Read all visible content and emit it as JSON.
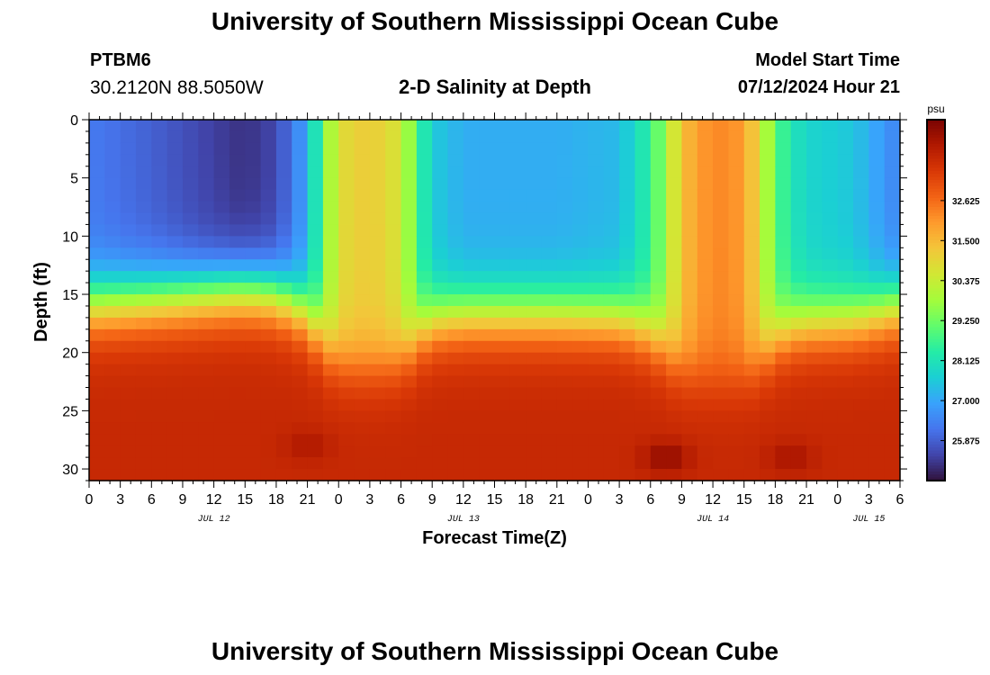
{
  "header": {
    "title": "University of Southern Mississippi Ocean Cube",
    "station_id": "PTBM6",
    "coords": "30.2120N  88.5050W",
    "plot_title": "2-D Salinity at Depth",
    "start_label": "Model Start Time",
    "start_value": "07/12/2024 Hour 21"
  },
  "footer": {
    "title": "University of Southern Mississippi Ocean Cube"
  },
  "chart_data": {
    "type": "heatmap",
    "title": "2-D Salinity at Depth",
    "xlabel": "Forecast Time(Z)",
    "ylabel": "Depth (ft)",
    "ylim": [
      0,
      31
    ],
    "y_ticks": [
      0,
      5,
      10,
      15,
      20,
      25,
      30
    ],
    "x_range_hours": [
      0,
      78
    ],
    "x_tick_labels": [
      "0",
      "3",
      "6",
      "9",
      "12",
      "15",
      "18",
      "21",
      "0",
      "3",
      "6",
      "9",
      "12",
      "15",
      "18",
      "21",
      "0",
      "3",
      "6",
      "9",
      "12",
      "15",
      "18",
      "21",
      "0",
      "3",
      "6"
    ],
    "date_labels": [
      {
        "label": "JUL 12",
        "hour": 12
      },
      {
        "label": "JUL 13",
        "hour": 36
      },
      {
        "label": "JUL 14",
        "hour": 60
      },
      {
        "label": "JUL 15",
        "hour": 75
      }
    ],
    "colorbar": {
      "unit": "psu",
      "min": 24.75,
      "max": 34.9,
      "tick_labels": [
        "32.625",
        "31.500",
        "30.375",
        "29.250",
        "28.125",
        "27.000",
        "25.875"
      ],
      "colors": [
        "#30123b",
        "#4145ab",
        "#4675ed",
        "#39a2fc",
        "#1bcfd4",
        "#24eca6",
        "#61fc6c",
        "#a4fc3b",
        "#d1e834",
        "#f3c63a",
        "#fe9b2d",
        "#f36315",
        "#d93806",
        "#b11901",
        "#7a0402"
      ]
    },
    "grid": {
      "x_step_hours": 1.5,
      "depth_step_ft": 1,
      "surface_salinity_by_hour": [
        [
          0,
          26.3
        ],
        [
          6,
          25.9
        ],
        [
          12,
          25.4
        ],
        [
          15,
          25.2
        ],
        [
          18,
          25.5
        ],
        [
          21,
          27.0
        ],
        [
          22.5,
          29.2
        ],
        [
          24,
          30.8
        ],
        [
          27,
          31.2
        ],
        [
          30,
          30.6
        ],
        [
          31.5,
          28.8
        ],
        [
          33,
          27.6
        ],
        [
          36,
          27.1
        ],
        [
          45,
          27.1
        ],
        [
          51,
          27.3
        ],
        [
          54,
          28.5
        ],
        [
          55.5,
          29.8
        ],
        [
          57,
          31.4
        ],
        [
          60,
          32.3
        ],
        [
          63,
          32.0
        ],
        [
          64.5,
          30.7
        ],
        [
          66,
          29.0
        ],
        [
          67.5,
          28.2
        ],
        [
          69,
          27.8
        ],
        [
          73.5,
          27.5
        ],
        [
          78,
          26.4
        ]
      ],
      "bottom_salinity_psu": 33.8,
      "hot_spots": [
        {
          "hour": 21,
          "depth_ft": 28,
          "psu": 34.2
        },
        {
          "hour": 55.5,
          "depth_ft": 29,
          "psu": 34.6
        },
        {
          "hour": 67.5,
          "depth_ft": 29,
          "psu": 34.3
        }
      ]
    }
  }
}
